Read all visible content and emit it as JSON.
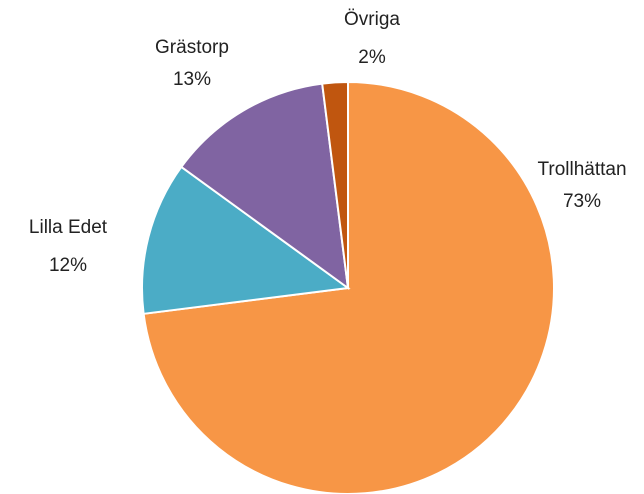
{
  "chart_data": {
    "type": "pie",
    "categories": [
      "Trollhättan",
      "Lilla Edet",
      "Grästorp",
      "Övriga"
    ],
    "values": [
      73,
      12,
      13,
      2
    ],
    "value_labels": [
      "73%",
      "12%",
      "13%",
      "2%"
    ],
    "colors": [
      "#f79646",
      "#4bacc6",
      "#8064a2",
      "#c0560f"
    ]
  }
}
